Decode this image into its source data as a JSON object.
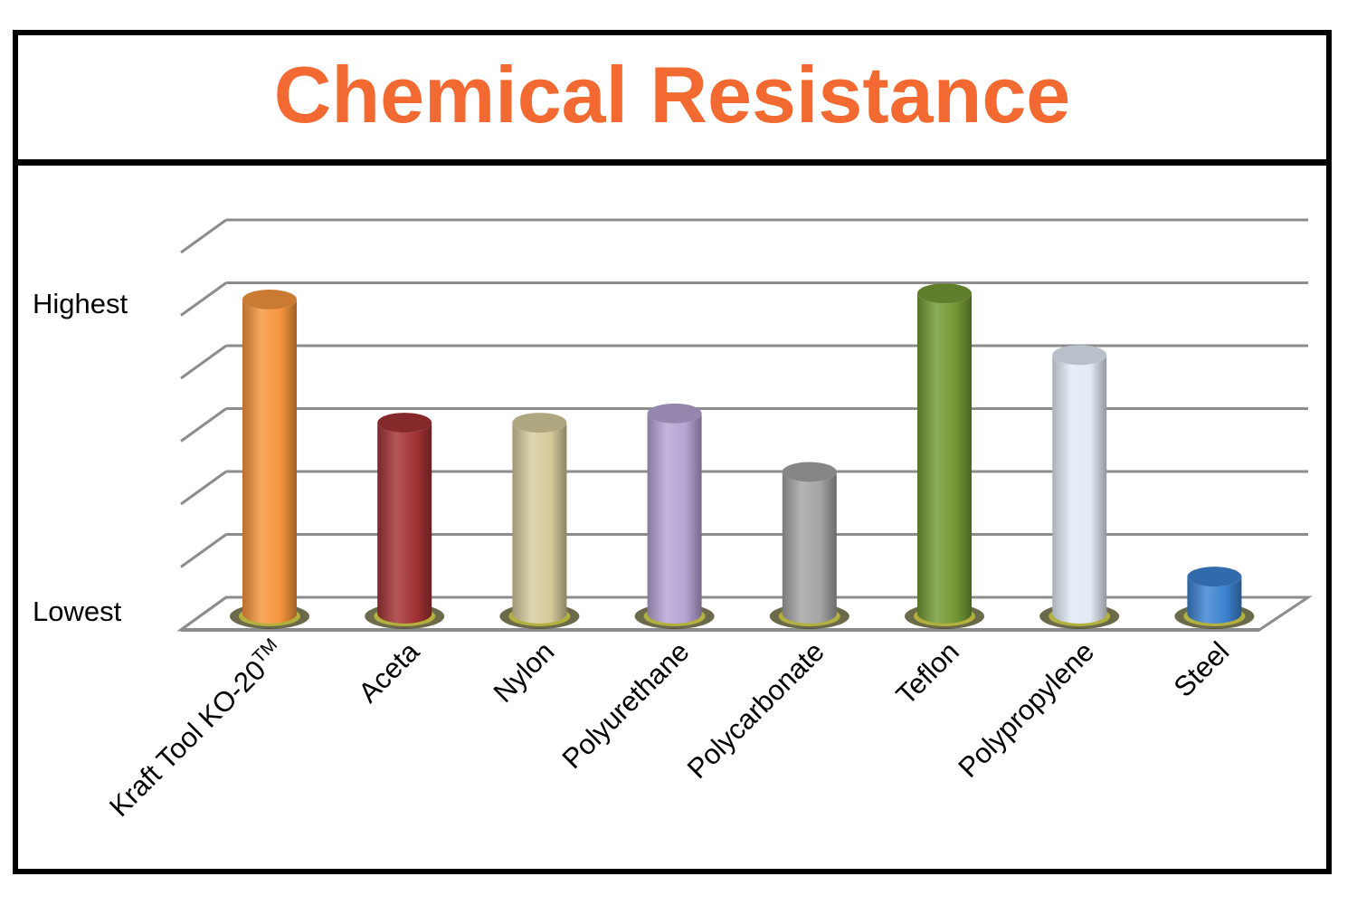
{
  "chart_data": {
    "type": "bar",
    "title": "Chemical Resistance",
    "categories": [
      "Kraft Tool KO-20™",
      "Aceta",
      "Nylon",
      "Polyurethane",
      "Polycarbonate",
      "Teflon",
      "Polypropylene",
      "Steel"
    ],
    "values": [
      5.1,
      3.1,
      3.1,
      3.25,
      2.3,
      5.2,
      4.2,
      0.6
    ],
    "colors": [
      "#f7953d",
      "#a33235",
      "#d5cc9c",
      "#b5a3d3",
      "#a4a4a4",
      "#739a35",
      "#e2eaf5",
      "#3c82d1"
    ],
    "ylim": [
      0,
      6
    ],
    "grid": true,
    "y_tick_labels": {
      "lowest": "Lowest",
      "highest": "Highest"
    }
  }
}
